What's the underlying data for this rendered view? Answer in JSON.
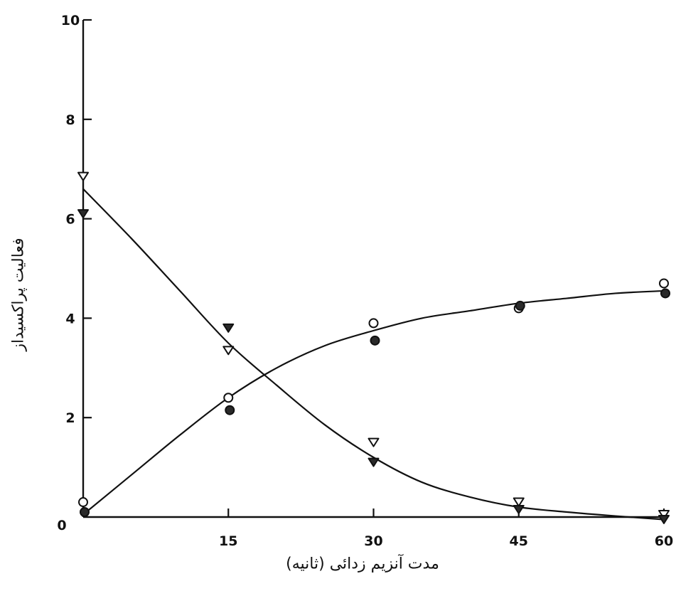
{
  "chart_data": {
    "type": "scatter",
    "xlabel": "مدت آنزیم زدائی (ثانیه)",
    "ylabel": "فعالیت پراکسیداز",
    "xlim": [
      0,
      60
    ],
    "ylim": [
      0,
      10
    ],
    "xticks": [
      0,
      15,
      30,
      45,
      60
    ],
    "yticks": [
      2,
      4,
      6,
      8,
      10
    ],
    "series": [
      {
        "marker": "open-circle",
        "x": [
          0,
          15,
          30,
          45,
          60
        ],
        "y": [
          0.3,
          2.4,
          3.9,
          4.2,
          4.7
        ]
      },
      {
        "marker": "filled-circle",
        "x": [
          0,
          15,
          30,
          45,
          60
        ],
        "y": [
          0.1,
          2.15,
          3.55,
          4.25,
          4.5
        ]
      },
      {
        "marker": "open-triangle-down",
        "x": [
          0,
          15,
          30,
          45,
          60
        ],
        "y": [
          6.85,
          3.35,
          1.5,
          0.3,
          0.05
        ]
      },
      {
        "marker": "filled-triangle-down",
        "x": [
          0,
          15,
          30,
          45,
          60
        ],
        "y": [
          6.1,
          3.8,
          1.1,
          0.15,
          -0.05
        ]
      }
    ],
    "fit_curves": [
      {
        "x": [
          0,
          5,
          10,
          15,
          20,
          25,
          30,
          35,
          40,
          45,
          50,
          55,
          60
        ],
        "y": [
          0.05,
          0.85,
          1.65,
          2.4,
          3.0,
          3.45,
          3.75,
          4.0,
          4.15,
          4.3,
          4.4,
          4.5,
          4.55
        ]
      },
      {
        "x": [
          0,
          5,
          10,
          15,
          20,
          25,
          30,
          35,
          40,
          45,
          50,
          55,
          60
        ],
        "y": [
          6.6,
          5.6,
          4.55,
          3.5,
          2.65,
          1.85,
          1.2,
          0.7,
          0.4,
          0.2,
          0.1,
          0.02,
          -0.05
        ]
      }
    ]
  }
}
